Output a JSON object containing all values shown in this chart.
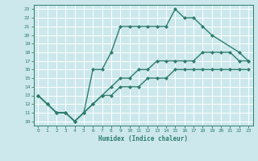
{
  "title": "",
  "xlabel": "Humidex (Indice chaleur)",
  "bg_color": "#cce8ec",
  "grid_color": "#ffffff",
  "line_color": "#2e7d6e",
  "xlim": [
    -0.5,
    23.5
  ],
  "ylim": [
    9.5,
    23.5
  ],
  "xticks": [
    0,
    1,
    2,
    3,
    4,
    5,
    6,
    7,
    8,
    9,
    10,
    11,
    12,
    13,
    14,
    15,
    16,
    17,
    18,
    19,
    20,
    21,
    22,
    23
  ],
  "yticks": [
    10,
    11,
    12,
    13,
    14,
    15,
    16,
    17,
    18,
    19,
    20,
    21,
    22,
    23
  ],
  "line1_x": [
    0,
    1,
    2,
    3,
    4,
    5,
    6,
    7,
    8,
    9,
    10,
    11,
    12,
    13,
    14,
    15,
    16,
    17,
    18,
    19,
    22,
    23
  ],
  "line1_y": [
    13,
    12,
    11,
    11,
    10,
    11,
    16,
    16,
    18,
    21,
    21,
    21,
    21,
    21,
    21,
    23,
    22,
    22,
    21,
    20,
    18,
    17
  ],
  "line2_x": [
    0,
    1,
    2,
    3,
    4,
    5,
    6,
    7,
    8,
    9,
    10,
    11,
    12,
    13,
    14,
    15,
    16,
    17,
    18,
    19,
    20,
    21,
    22,
    23
  ],
  "line2_y": [
    13,
    12,
    11,
    11,
    10,
    11,
    12,
    13,
    14,
    15,
    15,
    16,
    16,
    17,
    17,
    17,
    17,
    17,
    18,
    18,
    18,
    18,
    17,
    17
  ],
  "line3_x": [
    0,
    1,
    2,
    3,
    4,
    5,
    6,
    7,
    8,
    9,
    10,
    11,
    12,
    13,
    14,
    15,
    16,
    17,
    18,
    19,
    20,
    21,
    22,
    23
  ],
  "line3_y": [
    13,
    12,
    11,
    11,
    10,
    11,
    12,
    13,
    13,
    14,
    14,
    14,
    15,
    15,
    15,
    16,
    16,
    16,
    16,
    16,
    16,
    16,
    16,
    16
  ]
}
